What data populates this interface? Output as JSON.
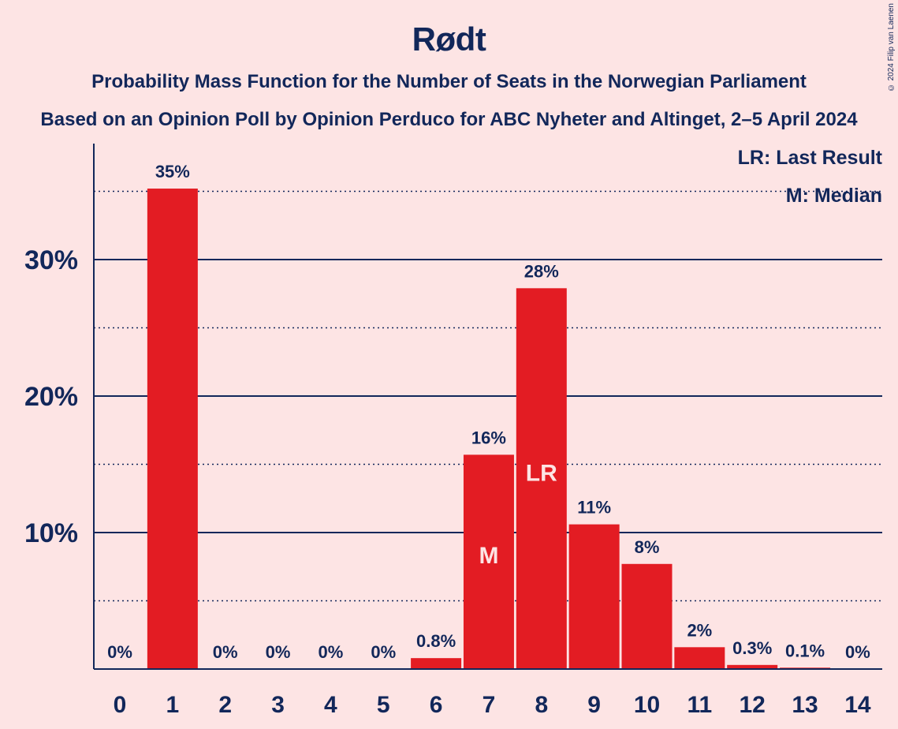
{
  "title": "Rødt",
  "subtitle1": "Probability Mass Function for the Number of Seats in the Norwegian Parliament",
  "subtitle2": "Based on an Opinion Poll by Opinion Perduco for ABC Nyheter and Altinget, 2–5 April 2024",
  "copyright": "© 2024 Filip van Laenen",
  "legend": {
    "lr": "LR: Last Result",
    "m": "M: Median"
  },
  "colors": {
    "bar": "#e31c23",
    "text": "#12275a",
    "background": "#fde4e4"
  },
  "chart_data": {
    "type": "bar",
    "categories": [
      "0",
      "1",
      "2",
      "3",
      "4",
      "5",
      "6",
      "7",
      "8",
      "9",
      "10",
      "11",
      "12",
      "13",
      "14"
    ],
    "values": [
      0,
      35.2,
      0,
      0,
      0,
      0,
      0.8,
      15.7,
      27.9,
      10.6,
      7.7,
      1.6,
      0.3,
      0.1,
      0
    ],
    "labels": [
      "0%",
      "35%",
      "0%",
      "0%",
      "0%",
      "0%",
      "0.8%",
      "16%",
      "28%",
      "11%",
      "8%",
      "2%",
      "0.3%",
      "0.1%",
      "0%"
    ],
    "yticks": [
      10,
      20,
      30
    ],
    "ytick_labels": [
      "10%",
      "20%",
      "30%"
    ],
    "ylim": [
      0,
      38.5
    ],
    "grid": true,
    "median_seats": "7",
    "last_result_seats": "8",
    "median_marker": "M",
    "last_result_marker": "LR",
    "legend_position": "top-right"
  }
}
